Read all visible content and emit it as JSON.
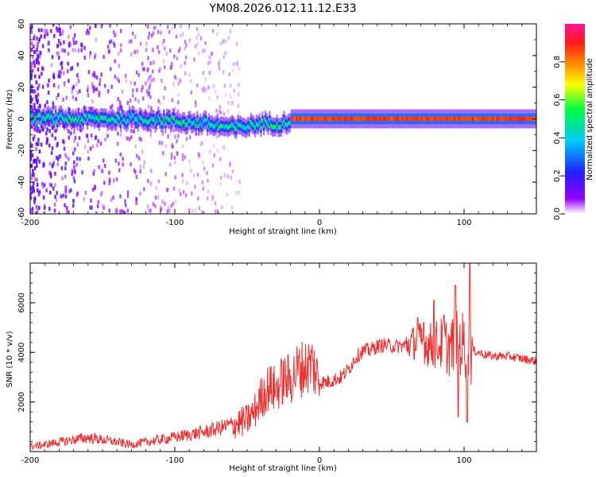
{
  "chart_data": [
    {
      "type": "heatmap",
      "title": "YM08.2026.012.11.12.E33",
      "xlabel": "Height of straight line (km)",
      "ylabel": "Frequency (Hz)",
      "xlim": [
        -200,
        150
      ],
      "ylim": [
        -60,
        60
      ],
      "xticks": [
        -200,
        -100,
        0,
        100
      ],
      "yticks": [
        60,
        40,
        20,
        0,
        -20,
        -40,
        -60
      ],
      "colorbar": {
        "label": "Normalized spectral amplitude",
        "range": [
          0.0,
          1.0
        ],
        "ticks": [
          0.0,
          0.2,
          0.4,
          0.6,
          0.8
        ],
        "colors": [
          "#ffffff",
          "#9400ff",
          "#2020ff",
          "#00c8ff",
          "#00ff40",
          "#ffff00",
          "#ff8000",
          "#ff1a1a",
          "#ff1493"
        ]
      },
      "features": {
        "band_center_hz": [
          [
            -200,
            0
          ],
          [
            -120,
            0
          ],
          [
            -80,
            -3
          ],
          [
            -60,
            -6
          ],
          [
            -40,
            -3
          ],
          [
            -25,
            -3
          ],
          [
            -20,
            0
          ],
          [
            0,
            0
          ],
          [
            150,
            0
          ]
        ],
        "band_halfwidth_hz": 2,
        "peak_amplitude_above_km": -20,
        "scatter_region_km": [
          -200,
          -70
        ]
      }
    },
    {
      "type": "line",
      "xlabel": "Height of straight line (km)",
      "ylabel": "SNR (10 * v/v)",
      "xlim": [
        -200,
        150
      ],
      "ylim": [
        0,
        7600
      ],
      "xticks": [
        -200,
        -100,
        0,
        100
      ],
      "yticks": [
        2000,
        4000,
        6000
      ],
      "series": [
        {
          "name": "SNR",
          "color": "#ee3030",
          "x": [
            -200,
            -190,
            -180,
            -170,
            -160,
            -150,
            -140,
            -130,
            -120,
            -110,
            -100,
            -90,
            -80,
            -70,
            -60,
            -50,
            -45,
            -40,
            -35,
            -30,
            -25,
            -20,
            -15,
            -10,
            -5,
            0,
            5,
            10,
            15,
            20,
            25,
            30,
            35,
            40,
            45,
            50,
            55,
            60,
            65,
            70,
            75,
            80,
            85,
            90,
            95,
            100,
            105,
            110,
            115,
            120,
            130,
            140,
            150
          ],
          "y": [
            200,
            280,
            380,
            480,
            560,
            480,
            380,
            280,
            380,
            480,
            580,
            680,
            780,
            930,
            1100,
            1250,
            1600,
            2200,
            2600,
            2500,
            2900,
            2900,
            3300,
            3400,
            3550,
            2800,
            2800,
            2900,
            3000,
            3300,
            3800,
            4050,
            4100,
            4250,
            4300,
            4250,
            4250,
            4300,
            4400,
            4450,
            4300,
            4300,
            4350,
            4200,
            4400,
            4300,
            4100,
            4000,
            3900,
            3850,
            3850,
            3750,
            3650
          ],
          "spikes": [
            {
              "x": 68,
              "y": 5400
            },
            {
              "x": 72,
              "y": 5200
            },
            {
              "x": 79,
              "y": 6100
            },
            {
              "x": 86,
              "y": 5500
            },
            {
              "x": 94,
              "y": 6700
            },
            {
              "x": 96,
              "y": 1400
            },
            {
              "x": 102,
              "y": 1200
            },
            {
              "x": 104,
              "y": 7600
            }
          ]
        }
      ]
    }
  ]
}
